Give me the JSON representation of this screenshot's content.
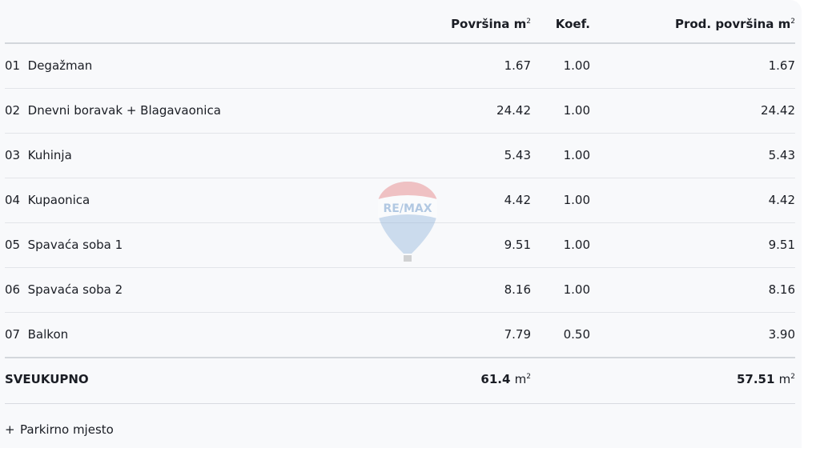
{
  "header": {
    "area": "Površina m",
    "area_sup": "2",
    "koef": "Koef.",
    "prod_area": "Prod. površina m",
    "prod_sup": "2"
  },
  "rows": [
    {
      "num": "01",
      "name": "Degažman",
      "area": "1.67",
      "koef": "1.00",
      "prod": "1.67"
    },
    {
      "num": "02",
      "name": "Dnevni boravak + Blagavaonica",
      "area": "24.42",
      "koef": "1.00",
      "prod": "24.42"
    },
    {
      "num": "03",
      "name": "Kuhinja",
      "area": "5.43",
      "koef": "1.00",
      "prod": "5.43"
    },
    {
      "num": "04",
      "name": "Kupaonica",
      "area": "4.42",
      "koef": "1.00",
      "prod": "4.42"
    },
    {
      "num": "05",
      "name": "Spavaća soba 1",
      "area": "9.51",
      "koef": "1.00",
      "prod": "9.51"
    },
    {
      "num": "06",
      "name": "Spavaća soba 2",
      "area": "8.16",
      "koef": "1.00",
      "prod": "8.16"
    },
    {
      "num": "07",
      "name": "Balkon",
      "area": "7.79",
      "koef": "0.50",
      "prod": "3.90"
    }
  ],
  "total": {
    "label": "SVEUKUPNO",
    "area": "61.4",
    "prod": "57.51",
    "unit": "m",
    "sup": "2"
  },
  "extra": {
    "icon": "+",
    "label": "Parkirno mjesto"
  },
  "watermark": {
    "text": "RE/MAX",
    "colors": {
      "red": "#e03a3e",
      "blue": "#1b63b0"
    }
  }
}
